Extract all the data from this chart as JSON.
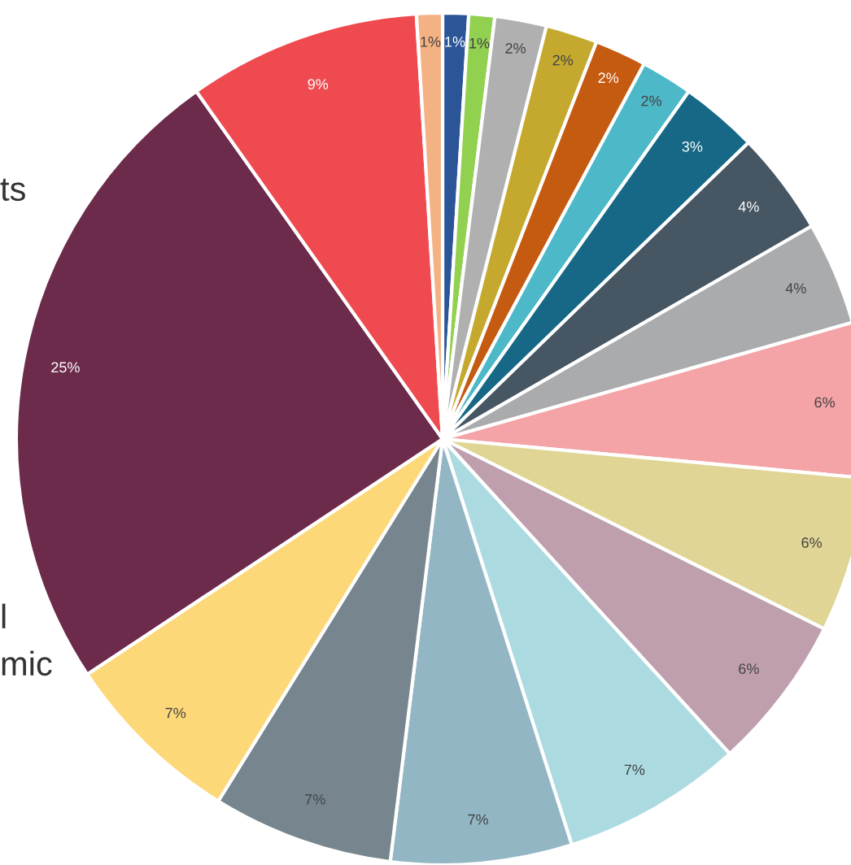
{
  "chart_data": {
    "type": "pie",
    "categories": [
      null,
      null,
      null,
      null,
      null,
      null,
      null,
      null,
      null,
      null,
      null,
      null,
      null,
      null,
      null,
      null,
      null,
      null,
      null
    ],
    "values": [
      1,
      1,
      2,
      2,
      2,
      2,
      3,
      4,
      4,
      6,
      6,
      6,
      7,
      7,
      7,
      7,
      25,
      9,
      1
    ],
    "value_labels": [
      "1%",
      "1%",
      "2%",
      "2%",
      "2%",
      "2%",
      "3%",
      "4%",
      "4%",
      "6%",
      "6%",
      "6%",
      "7%",
      "7%",
      "7%",
      "7%",
      "25%",
      "9%",
      "1%"
    ],
    "colors": [
      "#2b5597",
      "#92d050",
      "#b0b0b0",
      "#c5a92f",
      "#c55a11",
      "#4db8c8",
      "#166886",
      "#475663",
      "#a9abad",
      "#f4a3a6",
      "#e0d594",
      "#bf9fae",
      "#abdbe1",
      "#93b6c5",
      "#77868e",
      "#fdd878",
      "#6c2b4b",
      "#ef4a50",
      "#f4b183"
    ],
    "annotations": [
      "ts",
      "l",
      "mic"
    ]
  }
}
